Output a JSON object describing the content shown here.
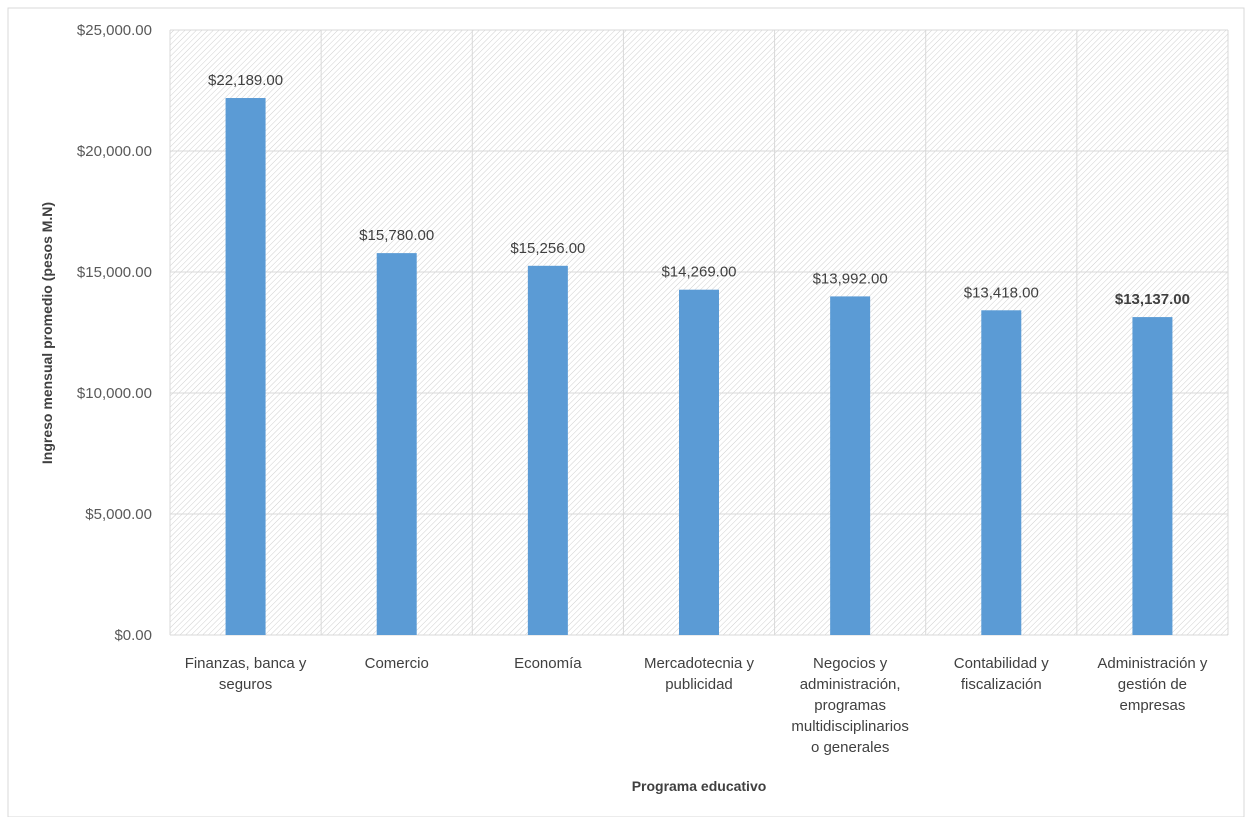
{
  "chart_data": {
    "type": "bar",
    "title": "",
    "xlabel": "Programa educativo",
    "ylabel": "Ingreso mensual promedio (pesos M.N)",
    "ylim": [
      0,
      25000
    ],
    "yticks": [
      0,
      5000,
      10000,
      15000,
      20000,
      25000
    ],
    "ytick_labels": [
      "$0.00",
      "$5,000.00",
      "$10,000.00",
      "$15,000.00",
      "$20,000.00",
      "$25,000.00"
    ],
    "categories": [
      [
        "Finanzas, banca y",
        "seguros"
      ],
      [
        "Comercio"
      ],
      [
        "Economía"
      ],
      [
        "Mercadotecnia y",
        "publicidad"
      ],
      [
        "Negocios y",
        "administración,",
        "programas",
        "multidisciplinarios",
        "o generales"
      ],
      [
        "Contabilidad y",
        "fiscalización"
      ],
      [
        "Administración y",
        "gestión de",
        "empresas"
      ]
    ],
    "values": [
      22189,
      15780,
      15256,
      14269,
      13992,
      13418,
      13137
    ],
    "data_labels": [
      "$22,189.00",
      "$15,780.00",
      "$15,256.00",
      "$14,269.00",
      "$13,992.00",
      "$13,418.00",
      "$13,137.00"
    ],
    "bold_label_index": 6,
    "grid": true,
    "legend": "none",
    "colors": {
      "bar": "#5B9BD5",
      "grid": "#D9D9D9",
      "hatch": "#D0D0D0",
      "text": "#404040"
    }
  }
}
